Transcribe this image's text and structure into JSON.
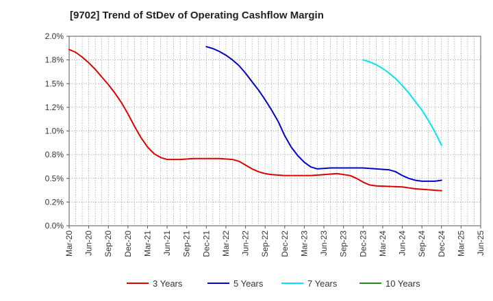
{
  "chart_data": {
    "type": "line",
    "title": "[9702]  Trend of StDev of Operating Cashflow Margin",
    "xlabel": "",
    "ylabel": "",
    "ylim": [
      0,
      2.0
    ],
    "y_ticks": [
      "0.0%",
      "0.2%",
      "0.5%",
      "0.8%",
      "1.0%",
      "1.2%",
      "1.5%",
      "1.8%",
      "2.0%"
    ],
    "x_ticks": [
      "Mar-20",
      "Jun-20",
      "Sep-20",
      "Dec-20",
      "Mar-21",
      "Jun-21",
      "Sep-21",
      "Dec-21",
      "Mar-22",
      "Jun-22",
      "Sep-22",
      "Dec-22",
      "Mar-23",
      "Jun-23",
      "Sep-23",
      "Dec-23",
      "Mar-24",
      "Jun-24",
      "Sep-24",
      "Dec-24",
      "Mar-25",
      "Jun-25"
    ],
    "x_range": [
      "Mar-20",
      "Jun-25"
    ],
    "grid": true,
    "legend_position": "bottom",
    "series": [
      {
        "name": "3 Years",
        "color": "#dd0000",
        "points": [
          [
            "Mar-20",
            1.86
          ],
          [
            "Apr-20",
            1.83
          ],
          [
            "May-20",
            1.78
          ],
          [
            "Jun-20",
            1.72
          ],
          [
            "Jul-20",
            1.65
          ],
          [
            "Aug-20",
            1.57
          ],
          [
            "Sep-20",
            1.49
          ],
          [
            "Oct-20",
            1.4
          ],
          [
            "Nov-20",
            1.3
          ],
          [
            "Dec-20",
            1.18
          ],
          [
            "Jan-21",
            1.05
          ],
          [
            "Feb-21",
            0.93
          ],
          [
            "Mar-21",
            0.83
          ],
          [
            "Apr-21",
            0.76
          ],
          [
            "May-21",
            0.72
          ],
          [
            "Jun-21",
            0.7
          ],
          [
            "Aug-21",
            0.7
          ],
          [
            "Oct-21",
            0.71
          ],
          [
            "Dec-21",
            0.71
          ],
          [
            "Feb-22",
            0.71
          ],
          [
            "Apr-22",
            0.7
          ],
          [
            "May-22",
            0.68
          ],
          [
            "Jun-22",
            0.64
          ],
          [
            "Jul-22",
            0.6
          ],
          [
            "Aug-22",
            0.57
          ],
          [
            "Sep-22",
            0.55
          ],
          [
            "Oct-22",
            0.54
          ],
          [
            "Dec-22",
            0.53
          ],
          [
            "Feb-23",
            0.53
          ],
          [
            "Apr-23",
            0.53
          ],
          [
            "Jun-23",
            0.54
          ],
          [
            "Aug-23",
            0.55
          ],
          [
            "Oct-23",
            0.53
          ],
          [
            "Nov-23",
            0.5
          ],
          [
            "Dec-23",
            0.46
          ],
          [
            "Jan-24",
            0.43
          ],
          [
            "Feb-24",
            0.42
          ],
          [
            "Jun-24",
            0.41
          ],
          [
            "Aug-24",
            0.39
          ],
          [
            "Oct-24",
            0.38
          ],
          [
            "Dec-24",
            0.37
          ]
        ]
      },
      {
        "name": "5 Years",
        "color": "#0000cc",
        "points": [
          [
            "Dec-21",
            1.89
          ],
          [
            "Jan-22",
            1.87
          ],
          [
            "Feb-22",
            1.84
          ],
          [
            "Mar-22",
            1.8
          ],
          [
            "Apr-22",
            1.75
          ],
          [
            "May-22",
            1.69
          ],
          [
            "Jun-22",
            1.61
          ],
          [
            "Jul-22",
            1.52
          ],
          [
            "Aug-22",
            1.43
          ],
          [
            "Sep-22",
            1.33
          ],
          [
            "Oct-22",
            1.22
          ],
          [
            "Nov-22",
            1.1
          ],
          [
            "Dec-22",
            0.95
          ],
          [
            "Jan-23",
            0.83
          ],
          [
            "Feb-23",
            0.74
          ],
          [
            "Mar-23",
            0.67
          ],
          [
            "Apr-23",
            0.62
          ],
          [
            "May-23",
            0.6
          ],
          [
            "Jul-23",
            0.61
          ],
          [
            "Oct-23",
            0.61
          ],
          [
            "Dec-23",
            0.61
          ],
          [
            "Feb-24",
            0.6
          ],
          [
            "Apr-24",
            0.59
          ],
          [
            "May-24",
            0.57
          ],
          [
            "Jun-24",
            0.53
          ],
          [
            "Jul-24",
            0.5
          ],
          [
            "Aug-24",
            0.48
          ],
          [
            "Sep-24",
            0.47
          ],
          [
            "Oct-24",
            0.47
          ],
          [
            "Nov-24",
            0.47
          ],
          [
            "Dec-24",
            0.48
          ]
        ]
      },
      {
        "name": "7 Years",
        "color": "#00e5ee",
        "points": [
          [
            "Dec-23",
            1.75
          ],
          [
            "Jan-24",
            1.73
          ],
          [
            "Feb-24",
            1.7
          ],
          [
            "Mar-24",
            1.66
          ],
          [
            "Apr-24",
            1.61
          ],
          [
            "May-24",
            1.55
          ],
          [
            "Jun-24",
            1.48
          ],
          [
            "Jul-24",
            1.4
          ],
          [
            "Aug-24",
            1.31
          ],
          [
            "Sep-24",
            1.22
          ],
          [
            "Oct-24",
            1.11
          ],
          [
            "Nov-24",
            0.99
          ],
          [
            "Dec-24",
            0.85
          ]
        ]
      },
      {
        "name": "10 Years",
        "color": "#228b22",
        "points": []
      }
    ]
  }
}
